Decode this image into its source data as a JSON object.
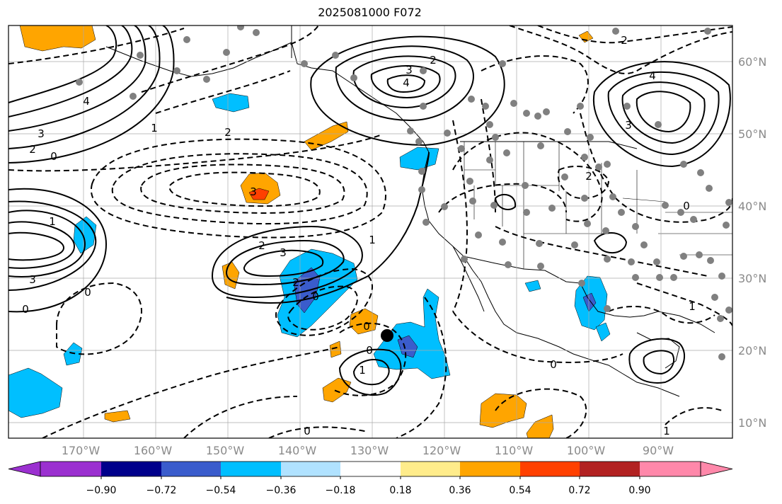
{
  "title": "2025081000 F072",
  "latitude_labels": [
    "60°N",
    "50°N",
    "40°N",
    "30°N",
    "20°N",
    "10°N"
  ],
  "longitude_labels": [
    "170°W",
    "160°W",
    "150°W",
    "140°W",
    "130°W",
    "120°W",
    "110°W",
    "100°W",
    "90°W"
  ],
  "colorbar": {
    "tick_labels": [
      "−0.90",
      "−0.72",
      "−0.54",
      "−0.36",
      "−0.18",
      "0.18",
      "0.36",
      "0.54",
      "0.72",
      "0.90"
    ],
    "colors": [
      "#9b30d0",
      "#00008b",
      "#3a5ccc",
      "#00bfff",
      "#b0e2ff",
      "#ffffff",
      "#ffec8b",
      "#ffa500",
      "#ff4000",
      "#b22222",
      "#ff88aa"
    ]
  },
  "contour_labels": {
    "alaska_high_3": "3",
    "alaska_high_4": "4",
    "alaska_high_2": "2",
    "west_high_4": "4",
    "west_high_3": "3",
    "west_high_2": "2",
    "west_high_0": "0",
    "mid_high_3": "3",
    "mid_high_2": "2",
    "mid_high_1": "1",
    "mid_low_2": "2",
    "mid_low_3": "3",
    "mid_low_1": "1",
    "east_high_4": "4",
    "east_high_3": "3",
    "east_high_2": "2",
    "lat30_m2": "2",
    "lat30_m3": "3",
    "lat30_0": "0",
    "sw_1": "1",
    "sw_0": "0",
    "sw_0b": "0",
    "sub_0a": "0",
    "sub_0b": "0",
    "sub_0c": "0",
    "sub_1": "1",
    "mex_0": "0",
    "mex_1": "1",
    "us_2": "2",
    "us_0": "0",
    "us_1": "1"
  }
}
